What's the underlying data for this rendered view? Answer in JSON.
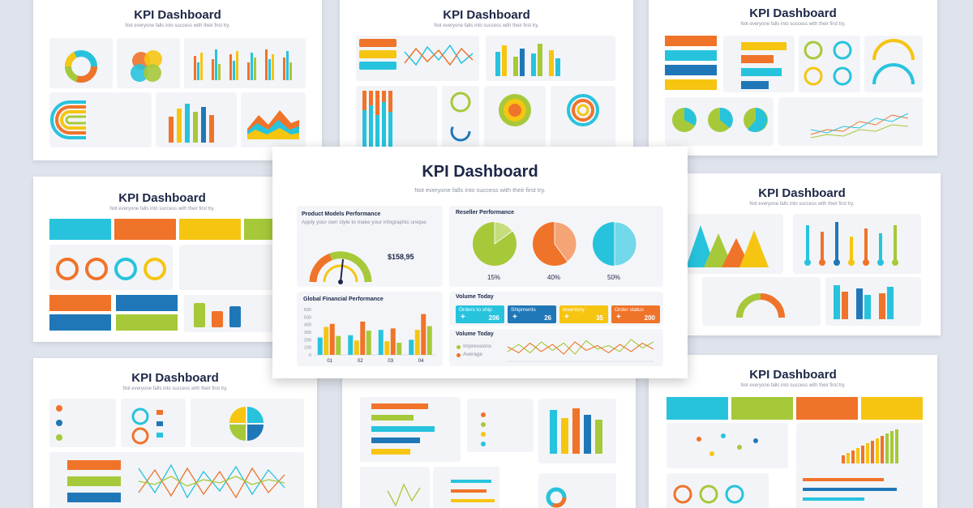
{
  "colors": {
    "cyan": "#27c3dd",
    "orange": "#f0732a",
    "yellow": "#f6c512",
    "green": "#a6c93a",
    "blue": "#1f77b8",
    "navy": "#1d2747",
    "bg": "#dfe3ec"
  },
  "thumbs": {
    "title": "KPI Dashboard",
    "subtitle": "Not everyone falls into success with their first try."
  },
  "main": {
    "title": "KPI Dashboard",
    "subtitle": "Not everyone falls into success with their first try.",
    "product_panel": {
      "title": "Product Models Performance",
      "subtitle": "Apply your own style to make your infographic unique",
      "value": "$158,95"
    },
    "reseller_panel": {
      "title": "Reseller Performance",
      "percents": [
        "15%",
        "40%",
        "50%"
      ]
    },
    "financial_panel": {
      "title": "Global Financial Performance"
    },
    "volume_panel": {
      "title": "Volume Today",
      "cards": [
        {
          "label": "Orders to ship",
          "value": "206",
          "color": "#27c3dd"
        },
        {
          "label": "Shipments",
          "value": "26",
          "color": "#1f77b8"
        },
        {
          "label": "Inventory",
          "value": "35",
          "color": "#f6c512"
        },
        {
          "label": "Order status",
          "value": "200",
          "color": "#f0732a"
        }
      ],
      "plus": "+"
    },
    "volume_panel2": {
      "title": "Volume Today",
      "legend": [
        "Impressions",
        "Average"
      ]
    }
  },
  "chart_data": [
    {
      "type": "bar",
      "title": "Global Financial Performance",
      "categories": [
        "01",
        "02",
        "03",
        "04"
      ],
      "y_ticks": [
        "0",
        "100",
        "200",
        "300",
        "400",
        "500",
        "600"
      ],
      "ylim": [
        0,
        600
      ],
      "series": [
        {
          "color": "#27c3dd",
          "values": [
            230,
            260,
            330,
            200
          ]
        },
        {
          "color": "#f6c512",
          "values": [
            370,
            190,
            180,
            330
          ]
        },
        {
          "color": "#f0732a",
          "values": [
            410,
            440,
            350,
            540
          ]
        },
        {
          "color": "#a6c93a",
          "values": [
            250,
            320,
            160,
            380
          ]
        }
      ]
    },
    {
      "type": "pie",
      "title": "Reseller Performance",
      "pies": [
        {
          "value": 15,
          "label": "15%",
          "color": "#a6c93a"
        },
        {
          "value": 40,
          "label": "40%",
          "color": "#f0732a"
        },
        {
          "value": 50,
          "label": "50%",
          "color": "#27c3dd"
        }
      ]
    },
    {
      "type": "line",
      "title": "Volume Today",
      "series": [
        {
          "name": "Impressions",
          "color": "#a6c93a",
          "values": [
            40,
            70,
            35,
            80,
            45,
            75,
            30,
            85,
            50,
            65,
            40,
            90,
            55,
            80
          ]
        },
        {
          "name": "Average",
          "color": "#f0732a",
          "values": [
            60,
            35,
            75,
            40,
            70,
            30,
            80,
            45,
            65,
            35,
            70,
            40,
            75,
            50
          ]
        }
      ]
    }
  ]
}
